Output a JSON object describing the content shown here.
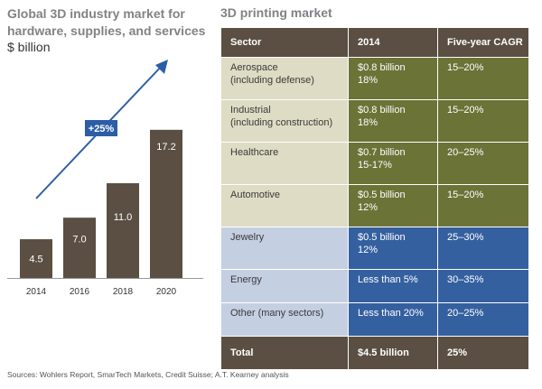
{
  "left": {
    "title": "Global 3D industry market for hardware, supplies, and services",
    "unit": "$ billion"
  },
  "chart_data": {
    "type": "bar",
    "title": "Global 3D industry market for hardware, supplies, and services",
    "ylabel": "$ billion",
    "categories": [
      "2014",
      "2016",
      "2018",
      "2020"
    ],
    "values": [
      4.5,
      7.0,
      11.0,
      17.2
    ],
    "value_labels": [
      "4.5",
      "7.0",
      "11.0",
      "17.2"
    ],
    "ylim": [
      0,
      22
    ],
    "annotation": "+25%",
    "bar_color": "#5a4f42",
    "arrow_color": "#2b5ea7",
    "grid": false
  },
  "table": {
    "title": "3D printing market",
    "headers": [
      "Sector",
      "2014",
      "Five-year CAGR"
    ],
    "rows": [
      {
        "sector": [
          "Aerospace",
          "(including defense)"
        ],
        "value": [
          "$0.8 billion",
          "18%"
        ],
        "cagr": "15–20%",
        "group": "g"
      },
      {
        "sector": [
          "Industrial",
          "(including construction)"
        ],
        "value": [
          "$0.8 billion",
          "18%"
        ],
        "cagr": "15–20%",
        "group": "g"
      },
      {
        "sector": [
          "Healthcare"
        ],
        "value": [
          "$0.7 billion",
          "15-17%"
        ],
        "cagr": "20–25%",
        "group": "g"
      },
      {
        "sector": [
          "Automotive"
        ],
        "value": [
          "$0.5 billion",
          "12%"
        ],
        "cagr": "15–20%",
        "group": "g"
      },
      {
        "sector": [
          "Jewelry"
        ],
        "value": [
          "$0.5 billion",
          "12%"
        ],
        "cagr": "25–30%",
        "group": "b"
      },
      {
        "sector": [
          "Energy"
        ],
        "value": [
          "Less than 5%"
        ],
        "cagr": "30–35%",
        "group": "b"
      },
      {
        "sector": [
          "Other (many sectors)"
        ],
        "value": [
          "Less than 20%"
        ],
        "cagr": "20–25%",
        "group": "b"
      }
    ],
    "total": {
      "label": "Total",
      "value": "$4.5 billion",
      "cagr": "25%"
    },
    "colors": {
      "header": "#5a4f42",
      "green_sector": "#dedcc4",
      "green_value": "#6b7337",
      "blue_sector": "#c5cfe2",
      "blue_value": "#3560a0"
    }
  },
  "sources": "Sources: Wohlers Report, SmarTech Markets, Credit Suisse; A.T. Kearney analysis"
}
